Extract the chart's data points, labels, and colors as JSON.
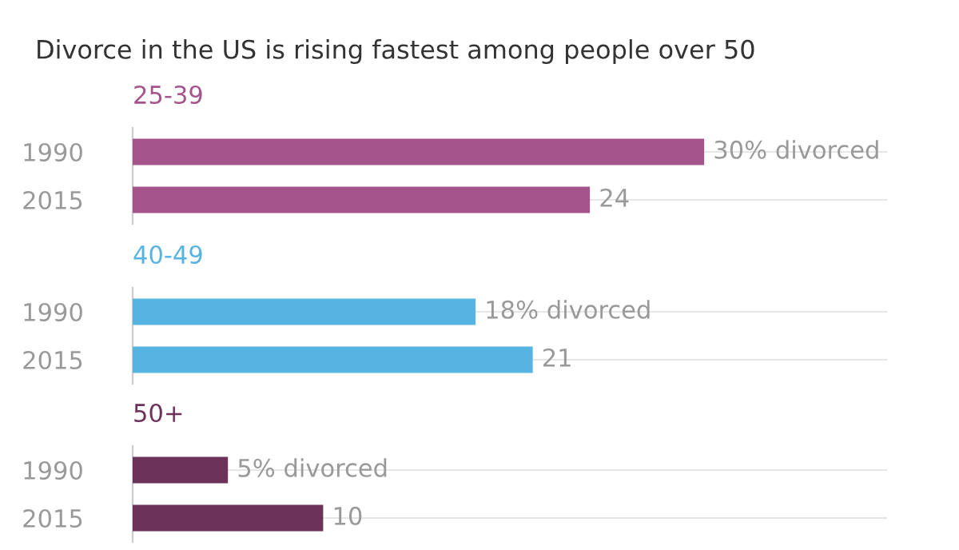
{
  "chart_data": [
    {
      "type": "bar",
      "orientation": "horizontal",
      "title": "Divorce in the US is rising fastest among people over 50",
      "subtitle": "25-39",
      "categories": [
        "1990",
        "2015"
      ],
      "values": [
        30,
        24
      ],
      "color": "#a5538b",
      "value_labels": [
        "30% divorced",
        "24"
      ],
      "grid": "y"
    },
    {
      "type": "bar",
      "orientation": "horizontal",
      "subtitle": "40-49",
      "categories": [
        "1990",
        "2015"
      ],
      "values": [
        18,
        21
      ],
      "color": "#57b3e2",
      "value_labels": [
        "18% divorced",
        "21"
      ],
      "grid": "y"
    },
    {
      "type": "bar",
      "orientation": "horizontal",
      "subtitle": "50+",
      "categories": [
        "1990",
        "2015"
      ],
      "values": [
        5,
        10
      ],
      "color": "#6d3259",
      "value_labels": [
        "5% divorced",
        "10"
      ],
      "grid": "y"
    }
  ]
}
